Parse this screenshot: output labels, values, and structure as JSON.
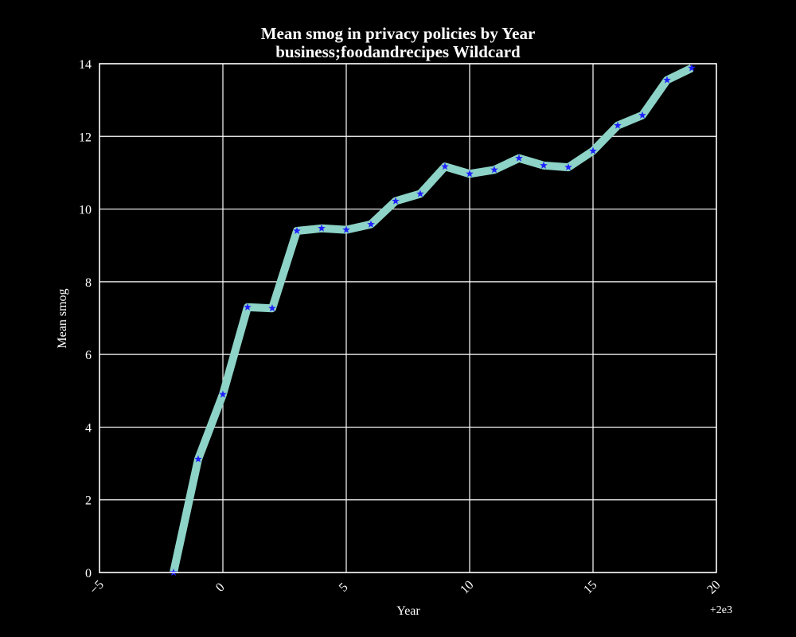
{
  "chart_data": {
    "type": "line",
    "title": [
      "Mean smog in privacy policies by Year",
      "business;foodandrecipes Wildcard"
    ],
    "xlabel": "Year",
    "ylabel": "Mean smog",
    "x_offset_label": "+2e3",
    "xlim": [
      -5,
      20
    ],
    "ylim": [
      0,
      14
    ],
    "xticks": [
      "−5",
      "0",
      "5",
      "10",
      "15",
      "20"
    ],
    "yticks": [
      "0",
      "2",
      "4",
      "6",
      "8",
      "10",
      "12",
      "14"
    ],
    "grid": true,
    "series": [
      {
        "x": [
          -2,
          -1,
          0,
          1,
          2,
          3,
          4,
          5,
          6,
          7,
          8,
          9,
          10,
          11,
          12,
          13,
          14,
          15,
          16,
          17,
          18,
          19
        ],
        "y": [
          0.0,
          3.12,
          4.9,
          7.3,
          7.27,
          9.4,
          9.47,
          9.43,
          9.58,
          10.22,
          10.42,
          11.17,
          10.97,
          11.08,
          11.4,
          11.2,
          11.15,
          11.6,
          12.3,
          12.58,
          13.55,
          13.88
        ],
        "line_color": "#8dd3c7",
        "marker_color": "#1f1fff",
        "marker": "star"
      }
    ]
  }
}
